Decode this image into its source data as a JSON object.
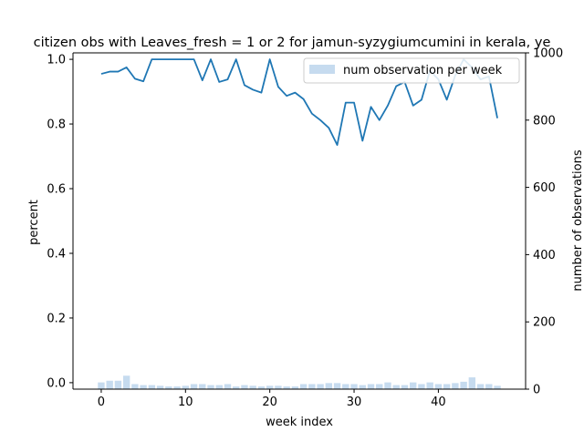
{
  "chart_data": {
    "type": "bar+line",
    "title": "citizen obs with Leaves_fresh = 1 or 2 for jamun-syzygiumcumini in kerala, ye",
    "xlabel": "week index",
    "ylabel_left": "percent",
    "ylabel_right": "number of observations",
    "xlim": [
      -3.35,
      50.35
    ],
    "ylim_left": [
      -0.02,
      1.02
    ],
    "ylim_right": [
      0,
      1000
    ],
    "x_ticks": [
      0,
      10,
      20,
      30,
      40
    ],
    "y_left_ticks": [
      0.0,
      0.2,
      0.4,
      0.6,
      0.8,
      1.0
    ],
    "y_right_ticks": [
      0,
      200,
      400,
      600,
      800,
      1000
    ],
    "grid": false,
    "legend_position": "upper right",
    "colors": {
      "line": "#1f77b4",
      "bars": "#c6dbef"
    },
    "series": [
      {
        "name": "num observation per week",
        "kind": "bar",
        "axis": "right",
        "x": [
          0,
          1,
          2,
          3,
          4,
          5,
          6,
          7,
          8,
          9,
          10,
          11,
          12,
          13,
          14,
          15,
          16,
          17,
          18,
          19,
          20,
          21,
          22,
          23,
          24,
          25,
          26,
          27,
          28,
          29,
          30,
          31,
          32,
          33,
          34,
          35,
          36,
          37,
          38,
          39,
          40,
          41,
          42,
          43,
          44,
          45,
          46,
          47
        ],
        "values": [
          20,
          25,
          25,
          40,
          15,
          12,
          12,
          10,
          8,
          8,
          10,
          15,
          15,
          12,
          12,
          15,
          8,
          12,
          10,
          8,
          10,
          10,
          8,
          8,
          15,
          15,
          15,
          18,
          18,
          15,
          15,
          12,
          15,
          15,
          20,
          12,
          12,
          20,
          15,
          20,
          15,
          15,
          18,
          22,
          35,
          15,
          15,
          10
        ]
      },
      {
        "kind": "line",
        "axis": "left",
        "x": [
          0,
          1,
          2,
          3,
          4,
          5,
          6,
          7,
          8,
          9,
          10,
          11,
          12,
          13,
          14,
          15,
          16,
          17,
          18,
          19,
          20,
          21,
          22,
          23,
          24,
          25,
          26,
          27,
          28,
          29,
          30,
          31,
          32,
          33,
          34,
          35,
          36,
          37,
          38,
          39,
          40,
          41,
          42,
          43,
          44,
          45,
          46,
          47
        ],
        "values": [
          0.955,
          0.962,
          0.962,
          0.975,
          0.94,
          0.932,
          1.0,
          1.0,
          1.0,
          1.0,
          1.0,
          1.0,
          0.935,
          1.0,
          0.93,
          0.938,
          1.0,
          0.92,
          0.906,
          0.897,
          1.0,
          0.915,
          0.887,
          0.897,
          0.877,
          0.832,
          0.812,
          0.788,
          0.735,
          0.866,
          0.866,
          0.748,
          0.853,
          0.812,
          0.857,
          0.917,
          0.93,
          0.857,
          0.875,
          0.965,
          0.938,
          0.875,
          0.95,
          1.0,
          0.975,
          0.938,
          0.947,
          0.818
        ]
      }
    ]
  }
}
